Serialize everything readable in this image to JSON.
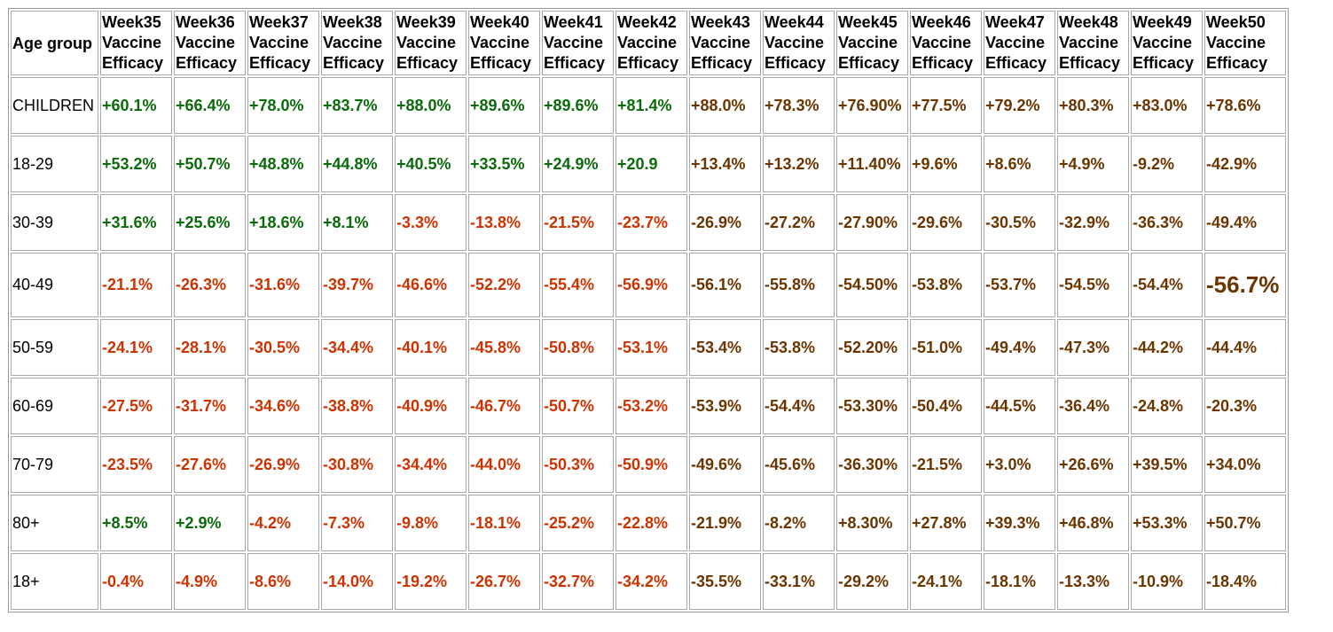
{
  "table": {
    "age_header": "Age group",
    "weeks": [
      "Week35",
      "Week36",
      "Week37",
      "Week38",
      "Week39",
      "Week40",
      "Week41",
      "Week42",
      "Week43",
      "Week44",
      "Week45",
      "Week46",
      "Week47",
      "Week48",
      "Week49",
      "Week50"
    ],
    "metric": "Vaccine Efficacy",
    "rows": [
      {
        "age": "CHILDREN",
        "values": [
          "+60.1%",
          "+66.4%",
          "+78.0%",
          "+83.7%",
          "+88.0%",
          "+89.6%",
          "+89.6%",
          "+81.4%",
          "+88.0%",
          "+78.3%",
          "+76.90%",
          "+77.5%",
          "+79.2%",
          "+80.3%",
          "+83.0%",
          "+78.6%"
        ]
      },
      {
        "age": "18-29",
        "values": [
          "+53.2%",
          "+50.7%",
          "+48.8%",
          "+44.8%",
          "+40.5%",
          "+33.5%",
          "+24.9%",
          "+20.9",
          "+13.4%",
          "+13.2%",
          "+11.40%",
          "+9.6%",
          "+8.6%",
          "+4.9%",
          "-9.2%",
          "-42.9%"
        ]
      },
      {
        "age": "30-39",
        "values": [
          "+31.6%",
          "+25.6%",
          "+18.6%",
          "+8.1%",
          "-3.3%",
          "-13.8%",
          "-21.5%",
          "-23.7%",
          "-26.9%",
          "-27.2%",
          "-27.90%",
          "-29.6%",
          "-30.5%",
          "-32.9%",
          "-36.3%",
          "-49.4%"
        ]
      },
      {
        "age": "40-49",
        "values": [
          "-21.1%",
          "-26.3%",
          "-31.6%",
          "-39.7%",
          "-46.6%",
          "-52.2%",
          "-55.4%",
          "-56.9%",
          "-56.1%",
          "-55.8%",
          "-54.50%",
          "-53.8%",
          "-53.7%",
          "-54.5%",
          "-54.4%",
          "-56.7%"
        ]
      },
      {
        "age": "50-59",
        "values": [
          "-24.1%",
          "-28.1%",
          "-30.5%",
          "-34.4%",
          "-40.1%",
          "-45.8%",
          "-50.8%",
          "-53.1%",
          "-53.4%",
          "-53.8%",
          "-52.20%",
          "-51.0%",
          "-49.4%",
          "-47.3%",
          "-44.2%",
          "-44.4%"
        ]
      },
      {
        "age": "60-69",
        "values": [
          "-27.5%",
          "-31.7%",
          "-34.6%",
          "-38.8%",
          "-40.9%",
          "-46.7%",
          "-50.7%",
          "-53.2%",
          "-53.9%",
          "-54.4%",
          "-53.30%",
          "-50.4%",
          "-44.5%",
          "-36.4%",
          "-24.8%",
          "-20.3%"
        ]
      },
      {
        "age": "70-79",
        "values": [
          "-23.5%",
          "-27.6%",
          "-26.9%",
          "-30.8%",
          "-34.4%",
          "-44.0%",
          "-50.3%",
          "-50.9%",
          "-49.6%",
          "-45.6%",
          "-36.30%",
          "-21.5%",
          "+3.0%",
          "+26.6%",
          "+39.5%",
          "+34.0%"
        ]
      },
      {
        "age": "80+",
        "values": [
          "+8.5%",
          "+2.9%",
          "-4.2%",
          "-7.3%",
          "-9.8%",
          "-18.1%",
          "-25.2%",
          "-22.8%",
          "-21.9%",
          "-8.2%",
          "+8.30%",
          "+27.8%",
          "+39.3%",
          "+46.8%",
          "+53.3%",
          "+50.7%"
        ]
      },
      {
        "age": "18+",
        "values": [
          "-0.4%",
          "-4.9%",
          "-8.6%",
          "-14.0%",
          "-19.2%",
          "-26.7%",
          "-32.7%",
          "-34.2%",
          "-35.5%",
          "-33.1%",
          "-29.2%",
          "-24.1%",
          "-18.1%",
          "-13.3%",
          "-10.9%",
          "-18.4%"
        ]
      }
    ]
  },
  "colors": {
    "positive": "#0a6b0a",
    "negative": "#cc3300",
    "later_weeks": "#6b3500",
    "border": "#a8a8a8"
  },
  "highlight": {
    "row": 3,
    "col": 15
  }
}
